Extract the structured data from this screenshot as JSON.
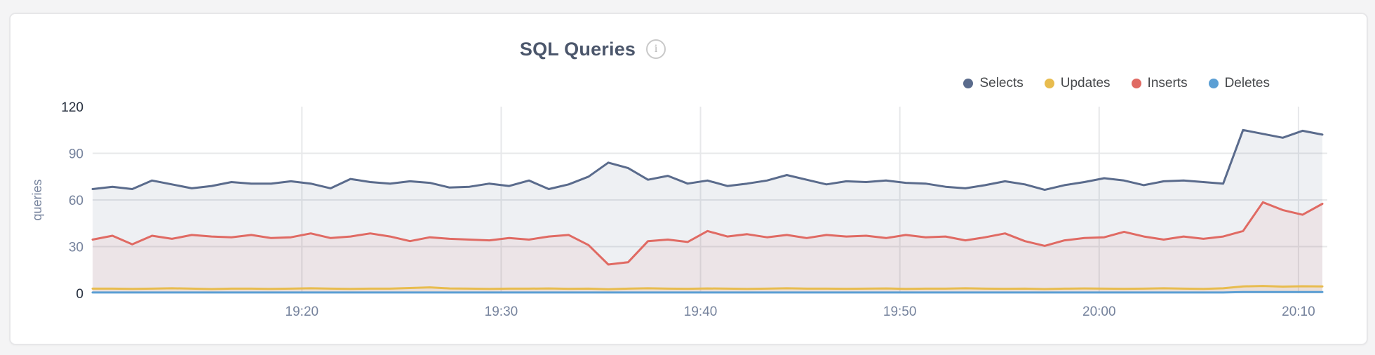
{
  "header": {
    "title": "SQL Queries",
    "info_glyph": "i"
  },
  "legend": {
    "items": [
      {
        "label": "Selects",
        "color": "#5a6b8c"
      },
      {
        "label": "Updates",
        "color": "#e8bc4e"
      },
      {
        "label": "Inserts",
        "color": "#e06a63"
      },
      {
        "label": "Deletes",
        "color": "#5b9fd4"
      }
    ]
  },
  "style": {
    "title_color": "#4b566b",
    "tick_color": "#76839d",
    "tick_strong_color": "#27303f",
    "grid_color": "#e7e8ea",
    "legend_text_color": "#46484b",
    "card_background": "#ffffff",
    "page_background": "#f4f4f5"
  },
  "chart_data": {
    "type": "area",
    "title": "SQL Queries",
    "xlabel": "",
    "ylabel": "queries",
    "ylim": [
      0,
      120
    ],
    "y_ticks": [
      0,
      30,
      60,
      90,
      120
    ],
    "y_ticks_strong": [
      0,
      120
    ],
    "x_ticks": [
      "19:20",
      "19:30",
      "19:40",
      "19:50",
      "20:00",
      "20:10"
    ],
    "x_tick_minutes": [
      20,
      30,
      40,
      50,
      60,
      70
    ],
    "x_start_min": 9.5,
    "x_end_min": 71.2,
    "grid": true,
    "legend_position": "top-right",
    "series": [
      {
        "name": "Selects",
        "color": "#5a6b8c",
        "fill_opacity": 0.1,
        "values": [
          67,
          68.5,
          67,
          72.5,
          70,
          67.5,
          69,
          71.5,
          70.5,
          70.5,
          72,
          70.5,
          67.5,
          73.5,
          71.5,
          70.5,
          72,
          71,
          68,
          68.5,
          70.5,
          69,
          72.5,
          67,
          70,
          75,
          84,
          80.5,
          73,
          75.5,
          70.5,
          72.5,
          69,
          70.5,
          72.5,
          76,
          73,
          70,
          72,
          71.5,
          72.5,
          71,
          70.5,
          68.5,
          67.5,
          69.5,
          72,
          70,
          66.5,
          69.5,
          71.5,
          74,
          72.5,
          69.5,
          72,
          72.5,
          71.5,
          70.5,
          105,
          102.5,
          100,
          104.5,
          102
        ]
      },
      {
        "name": "Updates",
        "color": "#e8bc4e",
        "fill_opacity": 0.1,
        "values": [
          3,
          3,
          2.8,
          3,
          3.2,
          3,
          2.7,
          3,
          3,
          2.8,
          3,
          3.2,
          3,
          2.8,
          3,
          3,
          3.4,
          3.8,
          3.1,
          3,
          2.8,
          3,
          3,
          3.1,
          2.9,
          3,
          2.6,
          3,
          3.2,
          3,
          2.9,
          3.1,
          3,
          2.8,
          3,
          3.2,
          3,
          3,
          2.9,
          3,
          3.1,
          2.8,
          3,
          3,
          3.2,
          3,
          2.9,
          3,
          2.7,
          3,
          3.1,
          3,
          2.9,
          3,
          3.2,
          3,
          2.8,
          3.2,
          4.4,
          4.7,
          4.3,
          4.5,
          4.4
        ]
      },
      {
        "name": "Inserts",
        "color": "#e06a63",
        "fill_opacity": 0.085,
        "values": [
          34.5,
          37,
          31.5,
          37,
          35,
          37.5,
          36.5,
          36,
          37.5,
          35.5,
          36,
          38.5,
          35.5,
          36.5,
          38.5,
          36.5,
          33.5,
          36,
          35,
          34.5,
          34,
          35.5,
          34.5,
          36.5,
          37.5,
          31,
          18.5,
          20,
          33.5,
          34.5,
          33,
          40,
          36.5,
          38,
          36,
          37.5,
          35.5,
          37.5,
          36.5,
          37,
          35.5,
          37.5,
          36,
          36.5,
          34,
          36,
          38.5,
          33.5,
          30.5,
          34,
          35.5,
          36,
          39.5,
          36.5,
          34.5,
          36.5,
          35,
          36.5,
          40,
          58.5,
          53.5,
          50.5,
          57.5
        ]
      },
      {
        "name": "Deletes",
        "color": "#5b9fd4",
        "fill_opacity": 0.25,
        "values": [
          0.5,
          0.5,
          0.5,
          0.5,
          0.5,
          0.5,
          0.5,
          0.5,
          0.5,
          0.5,
          0.5,
          0.5,
          0.5,
          0.5,
          0.5,
          0.5,
          0.5,
          0.5,
          0.5,
          0.5,
          0.5,
          0.5,
          0.5,
          0.5,
          0.5,
          0.5,
          0.5,
          0.5,
          0.5,
          0.5,
          0.5,
          0.5,
          0.5,
          0.5,
          0.5,
          0.5,
          0.5,
          0.5,
          0.5,
          0.5,
          0.5,
          0.5,
          0.5,
          0.5,
          0.5,
          0.5,
          0.5,
          0.5,
          0.5,
          0.5,
          0.5,
          0.5,
          0.5,
          0.5,
          0.5,
          0.5,
          0.5,
          0.5,
          0.8,
          0.8,
          0.8,
          0.8,
          0.8
        ]
      }
    ]
  }
}
